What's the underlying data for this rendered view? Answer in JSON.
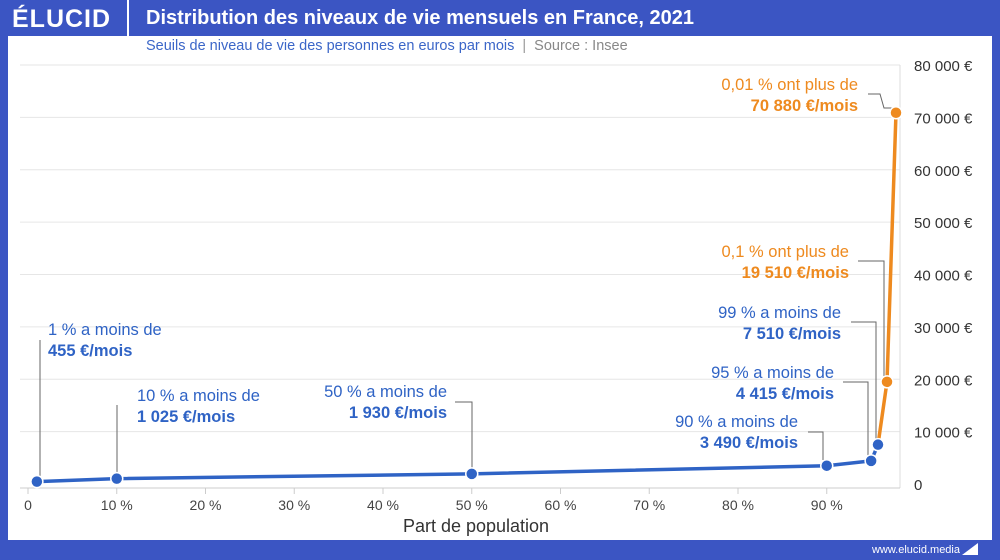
{
  "header": {
    "logo": "ÉLUCID",
    "title": "Distribution des niveaux de vie mensuels en France, 2021",
    "subtitle": "Seuils de niveau de vie des personnes en euros par mois",
    "separator": "|",
    "source": "Source : Insee"
  },
  "footer": {
    "url": "www.elucid.media"
  },
  "colors": {
    "brand": "#3b55c3",
    "line_low": "#2f63c5",
    "line_high": "#ee8a1f"
  },
  "chart_data": {
    "type": "line",
    "title": "Distribution des niveaux de vie mensuels en France, 2021",
    "xlabel": "Part de population",
    "ylabel": "",
    "x_ticks": [
      "0",
      "10 %",
      "20 %",
      "30 %",
      "40 %",
      "50 %",
      "60 %",
      "70 %",
      "80 %",
      "90 %"
    ],
    "y_ticks": [
      "0",
      "10 000 €",
      "20 000 €",
      "30 000 €",
      "40 000 €",
      "50 000 €",
      "60 000 €",
      "70 000 €",
      "80 000 €"
    ],
    "xlim": [
      0,
      100
    ],
    "ylim": [
      0,
      80000
    ],
    "y_axis_side": "right",
    "grid": "horizontal",
    "points": [
      {
        "x": 1,
        "y": 455,
        "series": "low",
        "l1": "1 % a moins de",
        "l2": "455 €/mois"
      },
      {
        "x": 10,
        "y": 1025,
        "series": "low",
        "l1": "10 % a moins de",
        "l2": "1 025 €/mois"
      },
      {
        "x": 50,
        "y": 1930,
        "series": "low",
        "l1": "50 % a moins de",
        "l2": "1 930 €/mois"
      },
      {
        "x": 90,
        "y": 3490,
        "series": "low",
        "l1": "90 % a moins de",
        "l2": "3 490 €/mois"
      },
      {
        "x": 95,
        "y": 4415,
        "series": "low",
        "l1": "95 % a moins de",
        "l2": "4 415 €/mois"
      },
      {
        "x": 99,
        "y": 7510,
        "series": "low",
        "l1": "99 % a moins de",
        "l2": "7 510 €/mois"
      },
      {
        "x": 99.9,
        "y": 19510,
        "series": "high",
        "l1": "0,1 % ont plus de",
        "l2": "19 510 €/mois"
      },
      {
        "x": 99.99,
        "y": 70880,
        "series": "high",
        "l1": "0,01 % ont plus de",
        "l2": "70 880 €/mois"
      }
    ]
  }
}
